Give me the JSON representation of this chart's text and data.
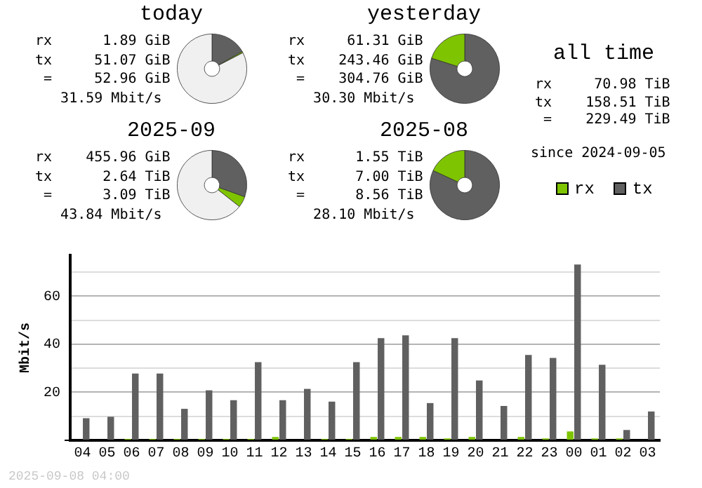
{
  "chart_data": [
    {
      "type": "donut",
      "title": "today",
      "categories": [
        null,
        null,
        null
      ],
      "values": [
        16.8,
        0.6,
        82.6
      ],
      "colors": [
        "#606060",
        "#7fc400",
        "#f0f0f0"
      ],
      "annotations": [
        "rx      1.89 GiB",
        "tx     51.07 GiB",
        " =     52.96 GiB",
        "   31.59 Mbit/s"
      ]
    },
    {
      "type": "donut",
      "title": "yesterday",
      "categories": [
        null,
        null
      ],
      "values": [
        79.9,
        20.1
      ],
      "colors": [
        "#606060",
        "#7fc400"
      ],
      "annotations": [
        "rx     61.31 GiB",
        "tx    243.46 GiB",
        " =    304.76 GiB",
        "   30.30 Mbit/s"
      ]
    },
    {
      "type": "donut",
      "title": "2025-09",
      "categories": [
        null,
        null,
        null
      ],
      "values": [
        30.5,
        5.1,
        64.4
      ],
      "colors": [
        "#606060",
        "#7fc400",
        "#f0f0f0"
      ],
      "annotations": [
        "rx    455.96 GiB",
        "tx      2.64 TiB",
        " =      3.09 TiB",
        "   43.84 Mbit/s"
      ]
    },
    {
      "type": "donut",
      "title": "2025-08",
      "categories": [
        null,
        null
      ],
      "values": [
        81.9,
        18.1
      ],
      "colors": [
        "#606060",
        "#7fc400"
      ],
      "annotations": [
        "rx      1.55 TiB",
        "tx      7.00 TiB",
        " =      8.56 TiB",
        "   28.10 Mbit/s"
      ]
    },
    {
      "type": "other",
      "title": "all time",
      "annotations": [
        "rx     70.98 TiB",
        "tx    158.51 TiB",
        " =    229.49 TiB",
        "since 2024-09-05"
      ]
    },
    {
      "type": "bar",
      "ylabel": "Mbit/s",
      "categories": [
        "04",
        "05",
        "06",
        "07",
        "08",
        "09",
        "10",
        "11",
        "12",
        "13",
        "14",
        "15",
        "16",
        "17",
        "18",
        "19",
        "20",
        "21",
        "22",
        "23",
        "00",
        "01",
        "02",
        "03"
      ],
      "series": [
        {
          "name": "rx",
          "color": "#7fc400",
          "values": [
            0,
            0,
            0.6,
            0.6,
            0.6,
            0.6,
            0.6,
            0.6,
            1.4,
            0,
            0.6,
            0.6,
            1.4,
            1.4,
            1.4,
            0.8,
            1.4,
            0,
            1.4,
            0.8,
            3.7,
            0.8,
            0.8,
            0
          ]
        },
        {
          "name": "tx",
          "color": "#606060",
          "values": [
            9.2,
            9.8,
            27.8,
            27.8,
            13.1,
            20.8,
            16.7,
            32.5,
            16.7,
            21.4,
            16.1,
            32.5,
            42.5,
            43.7,
            15.5,
            42.5,
            24.9,
            14.3,
            35.5,
            34.3,
            73.1,
            31.4,
            4.3,
            12.0
          ]
        }
      ],
      "ylim": [
        0,
        77
      ],
      "yticks": [
        {
          "value": 0,
          "label": null
        },
        {
          "value": 10,
          "label": null
        },
        20,
        {
          "value": 30,
          "label": null
        },
        40,
        {
          "value": 50,
          "label": null
        },
        60,
        {
          "value": 70,
          "label": null
        }
      ],
      "grid": "y",
      "legend": "top right",
      "annotations": [
        "2025-09-08 04:00"
      ]
    }
  ]
}
